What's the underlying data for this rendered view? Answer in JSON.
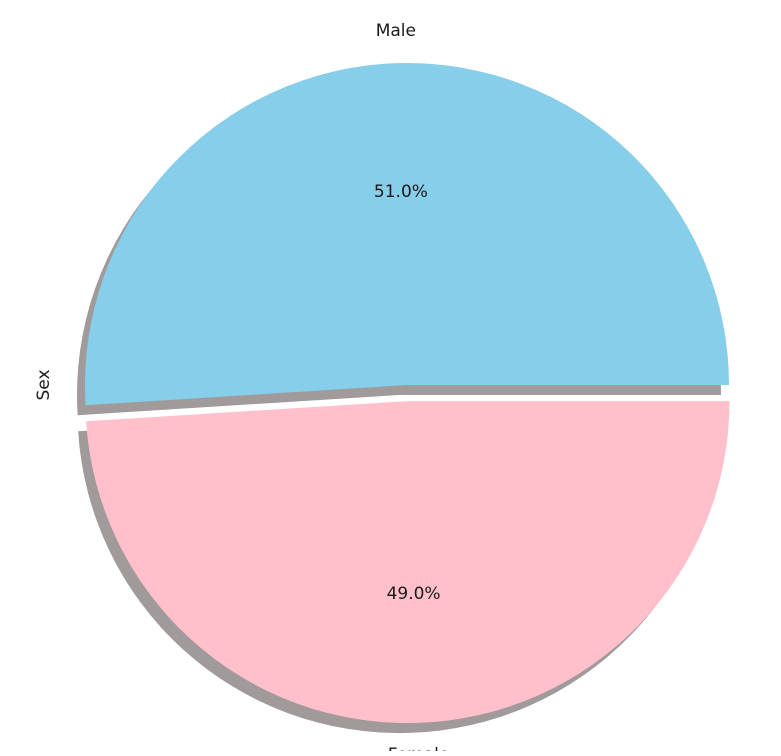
{
  "chart_data": {
    "type": "pie",
    "title": "",
    "ylabel": "Sex",
    "slices": [
      {
        "label": "Male",
        "value": 51.0,
        "pct_label": "51.0%",
        "color": "#87ceeb"
      },
      {
        "label": "Female",
        "value": 49.0,
        "pct_label": "49.0%",
        "color": "#ffc0cb"
      }
    ],
    "start_angle_deg": 0,
    "counterclock": true,
    "shadow": true,
    "explode": [
      0,
      0.05
    ],
    "shadow_color": "#a09a9b"
  }
}
